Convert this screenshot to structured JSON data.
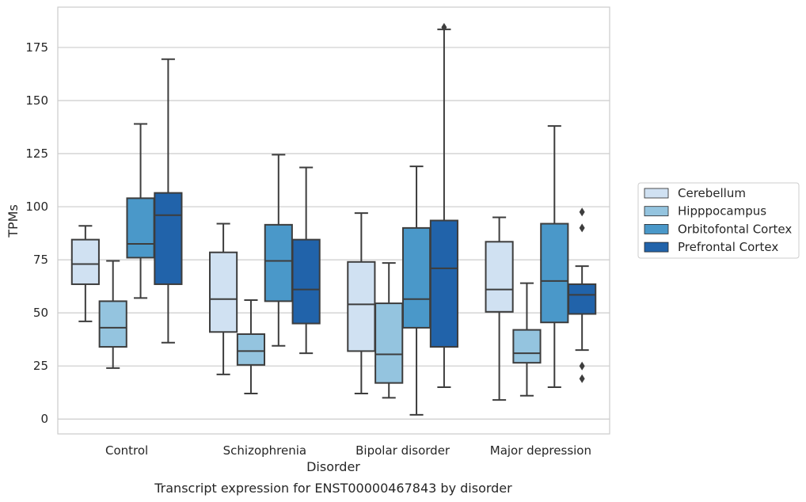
{
  "chart_data": {
    "type": "box",
    "caption": "Transcript expression for ENST00000467843 by disorder",
    "xlabel": "Disorder",
    "ylabel": "TPMs",
    "ylim": [
      -7,
      194
    ],
    "yticks": [
      0,
      25,
      50,
      75,
      100,
      125,
      150,
      175
    ],
    "grid": "horizontal",
    "legend_placement": "right",
    "categories": [
      "Control",
      "Schizophrenia",
      "Bipolar disorder",
      "Major depression"
    ],
    "series": [
      {
        "name": "Cerebellum",
        "color": "#d0e1f2",
        "boxes": [
          {
            "whisker_low": 46,
            "q1": 63.5,
            "median": 73,
            "q3": 84.5,
            "whisker_high": 91,
            "outliers": []
          },
          {
            "whisker_low": 21,
            "q1": 41,
            "median": 56.5,
            "q3": 78.5,
            "whisker_high": 92,
            "outliers": []
          },
          {
            "whisker_low": 12,
            "q1": 32,
            "median": 54,
            "q3": 74,
            "whisker_high": 97,
            "outliers": []
          },
          {
            "whisker_low": 9,
            "q1": 50.5,
            "median": 61,
            "q3": 83.5,
            "whisker_high": 95,
            "outliers": []
          }
        ]
      },
      {
        "name": "Hipppocampus",
        "color": "#94c4df",
        "boxes": [
          {
            "whisker_low": 24,
            "q1": 34,
            "median": 43,
            "q3": 55.5,
            "whisker_high": 74.5,
            "outliers": []
          },
          {
            "whisker_low": 12,
            "q1": 25.5,
            "median": 32,
            "q3": 40,
            "whisker_high": 56,
            "outliers": []
          },
          {
            "whisker_low": 10,
            "q1": 17,
            "median": 30.5,
            "q3": 54.5,
            "whisker_high": 73.5,
            "outliers": []
          },
          {
            "whisker_low": 11,
            "q1": 26.5,
            "median": 31,
            "q3": 42,
            "whisker_high": 64,
            "outliers": []
          }
        ]
      },
      {
        "name": "Orbitofontal Cortex",
        "color": "#4a98c9",
        "boxes": [
          {
            "whisker_low": 57,
            "q1": 76,
            "median": 82.5,
            "q3": 104,
            "whisker_high": 139,
            "outliers": []
          },
          {
            "whisker_low": 34.5,
            "q1": 55.5,
            "median": 74.5,
            "q3": 91.5,
            "whisker_high": 124.5,
            "outliers": []
          },
          {
            "whisker_low": 2,
            "q1": 43,
            "median": 56.5,
            "q3": 90,
            "whisker_high": 119,
            "outliers": []
          },
          {
            "whisker_low": 15,
            "q1": 45.5,
            "median": 65,
            "q3": 92,
            "whisker_high": 138,
            "outliers": []
          }
        ]
      },
      {
        "name": "Prefrontal Cortex",
        "color": "#2163aa",
        "boxes": [
          {
            "whisker_low": 36,
            "q1": 63.5,
            "median": 96,
            "q3": 106.5,
            "whisker_high": 169.5,
            "outliers": []
          },
          {
            "whisker_low": 31,
            "q1": 45,
            "median": 61,
            "q3": 84.5,
            "whisker_high": 118.5,
            "outliers": []
          },
          {
            "whisker_low": 15,
            "q1": 34,
            "median": 71,
            "q3": 93.5,
            "whisker_high": 183.5,
            "outliers": [
              184.5
            ]
          },
          {
            "whisker_low": 32.5,
            "q1": 49.5,
            "median": 58.5,
            "q3": 63.5,
            "whisker_high": 72,
            "outliers": [
              97.5,
              90,
              25,
              19
            ]
          }
        ]
      }
    ]
  }
}
